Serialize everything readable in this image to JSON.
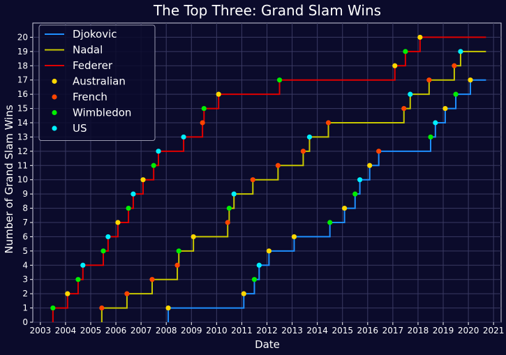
{
  "chart_data": {
    "type": "line",
    "title": "The Top Three: Grand Slam Wins",
    "xlabel": "Date",
    "ylabel": "Number of Grand Slam Wins",
    "xlim": [
      2002.7,
      2021.3
    ],
    "ylim": [
      0,
      21
    ],
    "x_ticks": [
      "2003",
      "2004",
      "2005",
      "2006",
      "2007",
      "2008",
      "2009",
      "2010",
      "2011",
      "2012",
      "2013",
      "2014",
      "2015",
      "2016",
      "2017",
      "2018",
      "2019",
      "2020",
      "2021"
    ],
    "y_ticks": [
      "0",
      "1",
      "2",
      "3",
      "4",
      "5",
      "6",
      "7",
      "8",
      "9",
      "10",
      "11",
      "12",
      "13",
      "14",
      "15",
      "16",
      "17",
      "18",
      "19",
      "20"
    ],
    "grid": true,
    "legend_position": "top-left",
    "series": [
      {
        "name": "Djokovic",
        "color": "#1f8fff",
        "end_x": 2020.7,
        "wins": [
          {
            "x": 2008.08,
            "t": "Australian"
          },
          {
            "x": 2011.08,
            "t": "Australian"
          },
          {
            "x": 2011.5,
            "t": "Wimbledon"
          },
          {
            "x": 2011.69,
            "t": "US"
          },
          {
            "x": 2012.08,
            "t": "Australian"
          },
          {
            "x": 2013.08,
            "t": "Australian"
          },
          {
            "x": 2014.5,
            "t": "Wimbledon"
          },
          {
            "x": 2015.08,
            "t": "Australian"
          },
          {
            "x": 2015.5,
            "t": "Wimbledon"
          },
          {
            "x": 2015.69,
            "t": "US"
          },
          {
            "x": 2016.08,
            "t": "Australian"
          },
          {
            "x": 2016.44,
            "t": "French"
          },
          {
            "x": 2018.5,
            "t": "Wimbledon"
          },
          {
            "x": 2018.69,
            "t": "US"
          },
          {
            "x": 2019.08,
            "t": "Australian"
          },
          {
            "x": 2019.5,
            "t": "Wimbledon"
          },
          {
            "x": 2020.08,
            "t": "Australian"
          }
        ]
      },
      {
        "name": "Nadal",
        "color": "#c8c800",
        "end_x": 2020.7,
        "wins": [
          {
            "x": 2005.44,
            "t": "French"
          },
          {
            "x": 2006.44,
            "t": "French"
          },
          {
            "x": 2007.44,
            "t": "French"
          },
          {
            "x": 2008.44,
            "t": "French"
          },
          {
            "x": 2008.5,
            "t": "Wimbledon"
          },
          {
            "x": 2009.08,
            "t": "Australian"
          },
          {
            "x": 2010.44,
            "t": "French"
          },
          {
            "x": 2010.5,
            "t": "Wimbledon"
          },
          {
            "x": 2010.69,
            "t": "US"
          },
          {
            "x": 2011.44,
            "t": "French"
          },
          {
            "x": 2012.44,
            "t": "French"
          },
          {
            "x": 2013.44,
            "t": "French"
          },
          {
            "x": 2013.69,
            "t": "US"
          },
          {
            "x": 2014.44,
            "t": "French"
          },
          {
            "x": 2017.44,
            "t": "French"
          },
          {
            "x": 2017.69,
            "t": "US"
          },
          {
            "x": 2018.44,
            "t": "French"
          },
          {
            "x": 2019.44,
            "t": "French"
          },
          {
            "x": 2019.69,
            "t": "US"
          }
        ]
      },
      {
        "name": "Federer",
        "color": "#e00000",
        "end_x": 2020.7,
        "wins": [
          {
            "x": 2003.5,
            "t": "Wimbledon"
          },
          {
            "x": 2004.08,
            "t": "Australian"
          },
          {
            "x": 2004.5,
            "t": "Wimbledon"
          },
          {
            "x": 2004.69,
            "t": "US"
          },
          {
            "x": 2005.5,
            "t": "Wimbledon"
          },
          {
            "x": 2005.69,
            "t": "US"
          },
          {
            "x": 2006.08,
            "t": "Australian"
          },
          {
            "x": 2006.5,
            "t": "Wimbledon"
          },
          {
            "x": 2006.69,
            "t": "US"
          },
          {
            "x": 2007.08,
            "t": "Australian"
          },
          {
            "x": 2007.5,
            "t": "Wimbledon"
          },
          {
            "x": 2007.69,
            "t": "US"
          },
          {
            "x": 2008.69,
            "t": "US"
          },
          {
            "x": 2009.44,
            "t": "French"
          },
          {
            "x": 2009.5,
            "t": "Wimbledon"
          },
          {
            "x": 2010.08,
            "t": "Australian"
          },
          {
            "x": 2012.5,
            "t": "Wimbledon"
          },
          {
            "x": 2017.08,
            "t": "Australian"
          },
          {
            "x": 2017.5,
            "t": "Wimbledon"
          },
          {
            "x": 2018.08,
            "t": "Australian"
          }
        ]
      }
    ],
    "tournaments": [
      {
        "name": "Australian",
        "color": "#ffd700"
      },
      {
        "name": "French",
        "color": "#ff4500"
      },
      {
        "name": "Wimbledon",
        "color": "#00ee00"
      },
      {
        "name": "US",
        "color": "#00f0ff"
      }
    ]
  }
}
